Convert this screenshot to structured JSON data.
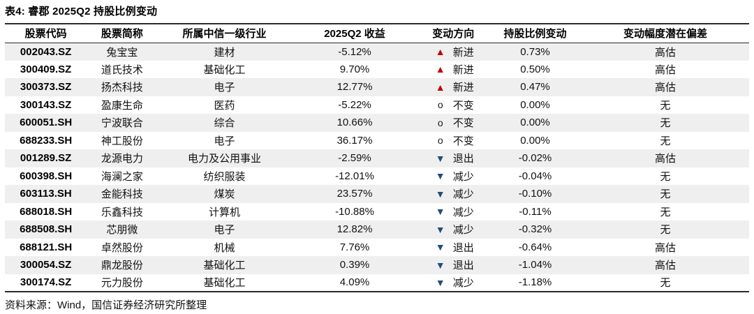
{
  "title": "表4: 睿郡 2025Q2 持股比例变动",
  "source": "资料来源：Wind，国信证券经济研究所整理",
  "columns": [
    "股票代码",
    "股票简称",
    "所属中信一级行业",
    "2025Q2 收益",
    "变动方向",
    "持股比例变动",
    "变动幅度潜在偏差"
  ],
  "markers": {
    "up": "▲",
    "flat": "o",
    "down": "▼"
  },
  "colors": {
    "up_marker": "#c00000",
    "down_marker": "#1f4e79",
    "stripe": "#efefef",
    "rule": "#2b2b2b",
    "text": "#111111"
  },
  "rows": [
    {
      "code": "002043.SZ",
      "name": "兔宝宝",
      "industry": "建材",
      "return": "-5.12%",
      "trend": "up",
      "direction": "新进",
      "change": "0.73%",
      "bias": "高估"
    },
    {
      "code": "300409.SZ",
      "name": "道氏技术",
      "industry": "基础化工",
      "return": "9.70%",
      "trend": "up",
      "direction": "新进",
      "change": "0.50%",
      "bias": "高估"
    },
    {
      "code": "300373.SZ",
      "name": "扬杰科技",
      "industry": "电子",
      "return": "12.77%",
      "trend": "up",
      "direction": "新进",
      "change": "0.47%",
      "bias": "高估"
    },
    {
      "code": "300143.SZ",
      "name": "盈康生命",
      "industry": "医药",
      "return": "-5.22%",
      "trend": "flat",
      "direction": "不变",
      "change": "0.00%",
      "bias": "无"
    },
    {
      "code": "600051.SH",
      "name": "宁波联合",
      "industry": "综合",
      "return": "10.66%",
      "trend": "flat",
      "direction": "不变",
      "change": "0.00%",
      "bias": "无"
    },
    {
      "code": "688233.SH",
      "name": "神工股份",
      "industry": "电子",
      "return": "36.17%",
      "trend": "flat",
      "direction": "不变",
      "change": "0.00%",
      "bias": "无"
    },
    {
      "code": "001289.SZ",
      "name": "龙源电力",
      "industry": "电力及公用事业",
      "return": "-2.59%",
      "trend": "down",
      "direction": "退出",
      "change": "-0.02%",
      "bias": "高估"
    },
    {
      "code": "600398.SH",
      "name": "海澜之家",
      "industry": "纺织服装",
      "return": "-12.01%",
      "trend": "down",
      "direction": "减少",
      "change": "-0.04%",
      "bias": "无"
    },
    {
      "code": "603113.SH",
      "name": "金能科技",
      "industry": "煤炭",
      "return": "23.57%",
      "trend": "down",
      "direction": "减少",
      "change": "-0.10%",
      "bias": "无"
    },
    {
      "code": "688018.SH",
      "name": "乐鑫科技",
      "industry": "计算机",
      "return": "-10.88%",
      "trend": "down",
      "direction": "减少",
      "change": "-0.11%",
      "bias": "无"
    },
    {
      "code": "688508.SH",
      "name": "芯朋微",
      "industry": "电子",
      "return": "12.82%",
      "trend": "down",
      "direction": "减少",
      "change": "-0.32%",
      "bias": "无"
    },
    {
      "code": "688121.SH",
      "name": "卓然股份",
      "industry": "机械",
      "return": "7.76%",
      "trend": "down",
      "direction": "退出",
      "change": "-0.64%",
      "bias": "高估"
    },
    {
      "code": "300054.SZ",
      "name": "鼎龙股份",
      "industry": "基础化工",
      "return": "0.39%",
      "trend": "down",
      "direction": "退出",
      "change": "-1.04%",
      "bias": "高估"
    },
    {
      "code": "300174.SZ",
      "name": "元力股份",
      "industry": "基础化工",
      "return": "4.09%",
      "trend": "down",
      "direction": "减少",
      "change": "-1.18%",
      "bias": "无"
    }
  ]
}
